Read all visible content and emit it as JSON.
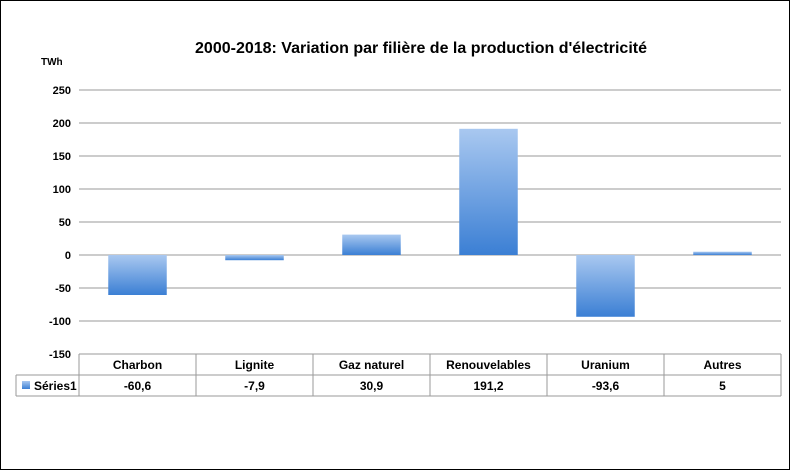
{
  "chart_data": {
    "type": "bar",
    "title": "2000-2018: Variation par filière de la production d'électricité",
    "unit_label": "TWh",
    "categories": [
      "Charbon",
      "Lignite",
      "Gaz naturel",
      "Renouvelables",
      "Uranium",
      "Autres"
    ],
    "series": [
      {
        "name": "Séries1",
        "values": [
          -60.6,
          -7.9,
          30.9,
          191.2,
          -93.6,
          5
        ],
        "value_labels": [
          "-60,6",
          "-7,9",
          "30,9",
          "191,2",
          "-93,6",
          "5"
        ]
      }
    ],
    "ylim": [
      -150,
      250
    ],
    "yticks": [
      250,
      200,
      150,
      100,
      50,
      0,
      -50,
      -100,
      -150
    ],
    "grid": true,
    "legend": "data-table-left",
    "colors": {
      "bar_top": "#a9c8f0",
      "bar_bottom": "#3b7fd4",
      "grid": "#9a9a9a"
    }
  }
}
